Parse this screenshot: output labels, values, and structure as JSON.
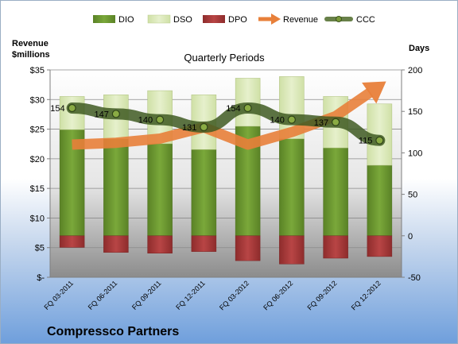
{
  "company": "Compressco Partners",
  "chart_data": {
    "type": "bar",
    "title": "Quarterly Periods",
    "categories": [
      "FQ 03-2011",
      "FQ 06-2011",
      "FQ 09-2011",
      "FQ 12-2011",
      "FQ 03-2012",
      "FQ 06-2012",
      "FQ 09-2012",
      "FQ 12-2012"
    ],
    "left_axis": {
      "label_line1": "Revenue",
      "label_line2": "$millions",
      "range": [
        0,
        35
      ],
      "ticks": [
        0,
        5,
        10,
        15,
        20,
        25,
        30,
        35
      ],
      "tick_labels": [
        "$-",
        "$5",
        "$10",
        "$15",
        "$20",
        "$25",
        "$30",
        "$35"
      ]
    },
    "right_axis": {
      "label": "Days",
      "range": [
        -50,
        200
      ],
      "ticks": [
        -50,
        0,
        50,
        100,
        150,
        200
      ],
      "tick_labels": [
        "-50",
        "0",
        "50",
        "100",
        "150",
        "200"
      ]
    },
    "legend_position": "top",
    "gridlines": true,
    "series": [
      {
        "name": "DIO",
        "type": "stacked-bar",
        "axis": "right",
        "color": "#6f9a30",
        "values": [
          128,
          117,
          111,
          104,
          132,
          117,
          106,
          85
        ]
      },
      {
        "name": "DSO",
        "type": "stacked-bar",
        "axis": "right",
        "color": "#d8e8b4",
        "values": [
          40,
          53,
          64,
          66,
          58,
          75,
          62,
          74
        ]
      },
      {
        "name": "DPO",
        "type": "stacked-bar",
        "axis": "right",
        "color": "#a33a3a",
        "values": [
          -14,
          -20,
          -21,
          -19,
          -30,
          -34,
          -27,
          -25
        ]
      },
      {
        "name": "Revenue",
        "type": "arrow-line",
        "axis": "left",
        "color": "#e8803a",
        "values": [
          22.4,
          22.7,
          23.4,
          25.3,
          22.4,
          24.5,
          27.2,
          32.3
        ]
      },
      {
        "name": "CCC",
        "type": "line",
        "axis": "right",
        "color": "#4e6b2a",
        "values": [
          154,
          147,
          140,
          131,
          154,
          140,
          137,
          115
        ],
        "data_labels": [
          "154",
          "147",
          "140",
          "131",
          "154",
          "140",
          "137",
          "115"
        ]
      }
    ]
  },
  "colors": {
    "dio": "#6f9a30",
    "dso": "#d8e8b4",
    "dpo": "#a33a3a",
    "revenue": "#e8803a",
    "ccc": "#4e6b2a",
    "grid": "#7f7f7f"
  }
}
